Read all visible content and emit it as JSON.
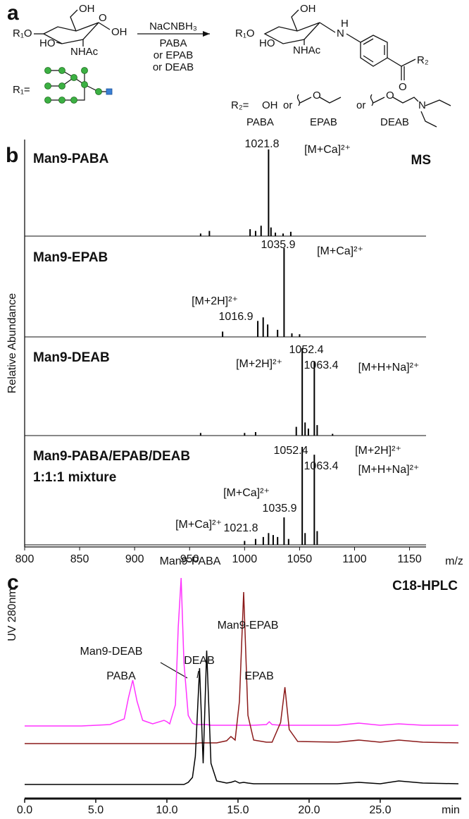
{
  "panel_labels": [
    "a",
    "b",
    "c"
  ],
  "scheme": {
    "reactant": {
      "r1o": "R₁O",
      "oh6": "OH",
      "ring_o": "O",
      "oh1": "OH",
      "ho": "HO",
      "nhac": "NHAc"
    },
    "r1": "R₁=",
    "reagents": [
      "NaCNBH₃",
      "PABA",
      "or EPAB",
      "or DEAB"
    ],
    "product": {
      "r1o": "R₁O",
      "oh": "OH",
      "ho": "HO",
      "nhac": "NHAc",
      "nh_h": "H",
      "nh_n": "N",
      "ketone_o": "O",
      "r2": "R₂"
    },
    "r2_def": {
      "label": "R₂=",
      "oh": "OH",
      "or": [
        "or",
        "or"
      ],
      "ether_o": [
        "O",
        "O"
      ],
      "amine_n": "N",
      "names": [
        "PABA",
        "EPAB",
        "DEAB"
      ]
    }
  },
  "chart_data": [
    {
      "type": "stem",
      "tag": "MS",
      "ylabel": "Relative Abundance",
      "xlabel": "m/z",
      "xlim": [
        800,
        1165
      ],
      "xticks": [
        800,
        850,
        900,
        950,
        1000,
        1050,
        1100,
        1150
      ],
      "ylim": [
        0,
        100
      ],
      "color": "#000000",
      "panels": [
        {
          "title": [
            "Man9-PABA"
          ],
          "x": [
            960,
            968,
            1005,
            1010,
            1015,
            1021.8,
            1024,
            1028,
            1035,
            1042
          ],
          "values": [
            3,
            6,
            8,
            6,
            12,
            100,
            10,
            4,
            3,
            5
          ],
          "annotations": [
            "1021.8",
            "[M+Ca]²⁺"
          ]
        },
        {
          "title": [
            "Man9-EPAB"
          ],
          "x": [
            980,
            1012,
            1016.9,
            1021,
            1030,
            1035.9,
            1043,
            1050
          ],
          "values": [
            6,
            18,
            22,
            14,
            8,
            100,
            4,
            3
          ],
          "annotations": [
            "1035.9",
            "[M+Ca]²⁺",
            "[M+2H]²⁺",
            "1016.9"
          ]
        },
        {
          "title": [
            "Man9-DEAB"
          ],
          "x": [
            960,
            1000,
            1010,
            1047,
            1052.4,
            1055,
            1058,
            1063.4,
            1066,
            1080
          ],
          "values": [
            3,
            3,
            4,
            10,
            100,
            15,
            8,
            85,
            12,
            2
          ],
          "annotations": [
            "1052.4",
            "[M+2H]²⁺",
            "1063.4",
            "[M+H+Na]²⁺"
          ]
        },
        {
          "title": [
            "Man9-PABA/EPAB/DEAB",
            "1:1:1 mixture"
          ],
          "x": [
            1000,
            1010,
            1017,
            1021.8,
            1026,
            1030,
            1035.9,
            1040,
            1052.4,
            1055,
            1063.4,
            1066
          ],
          "values": [
            4,
            6,
            8,
            12,
            10,
            8,
            28,
            6,
            100,
            12,
            92,
            14
          ],
          "annotations": [
            "1052.4",
            "[M+2H]²⁺",
            "1063.4",
            "[M+H+Na]²⁺",
            "[M+Ca]²⁺",
            "1035.9",
            "[M+Ca]²⁺",
            "1021.8"
          ]
        }
      ]
    },
    {
      "type": "line",
      "tag": "C18-HPLC",
      "ylabel": "UV 280nm",
      "xlabel": "min",
      "xlim": [
        0,
        30.5
      ],
      "xticks": [
        {
          "value": 0,
          "label": "0.0"
        },
        {
          "value": 5,
          "label": "5.0"
        },
        {
          "value": 10,
          "label": "10.0"
        },
        {
          "value": 15,
          "label": "15.0"
        },
        {
          "value": 20,
          "label": "20.0"
        },
        {
          "value": 25,
          "label": "25.0"
        }
      ],
      "ylim": [
        0,
        250
      ],
      "x": [
        0,
        2,
        4,
        6,
        7,
        7.3,
        7.6,
        7.9,
        8.3,
        9,
        9.8,
        10,
        10.2,
        10.6,
        10.8,
        11,
        11.2,
        11.5,
        11.8,
        12,
        12.3,
        12.55,
        12.8,
        13.1,
        13.5,
        14.2,
        14.5,
        14.8,
        15.1,
        15.4,
        15.7,
        16.1,
        17,
        17.2,
        17.4,
        18,
        18.3,
        18.6,
        19.2,
        22,
        23.5,
        25,
        26.3,
        28,
        30.5
      ],
      "series": [
        {
          "color": "#ff33ff",
          "values": [
            0,
            0,
            0,
            2,
            10,
            40,
            65,
            35,
            8,
            3,
            8,
            6,
            3,
            30,
            140,
            210,
            90,
            15,
            4,
            2,
            2,
            2,
            2,
            1,
            1,
            1,
            1,
            1,
            1,
            1,
            1,
            1,
            2,
            6,
            2,
            1,
            1,
            1,
            1,
            1,
            4,
            1,
            3,
            1,
            1
          ]
        },
        {
          "color": "#8b1a1a",
          "values": [
            0,
            0,
            0,
            0,
            0,
            0,
            0,
            0,
            0,
            0,
            0,
            0,
            0,
            0,
            0,
            0,
            0,
            0,
            0,
            0,
            1,
            1,
            1,
            1,
            1,
            4,
            10,
            5,
            60,
            215,
            40,
            5,
            2,
            2,
            2,
            30,
            80,
            20,
            3,
            2,
            5,
            2,
            5,
            2,
            1
          ]
        },
        {
          "color": "#000000",
          "values": [
            0,
            0,
            0,
            0,
            0,
            0,
            0,
            0,
            0,
            0,
            0,
            0,
            0,
            0,
            0,
            0,
            0,
            3,
            10,
            40,
            165,
            30,
            190,
            30,
            5,
            2,
            3,
            5,
            2,
            3,
            2,
            1,
            1,
            1,
            1,
            1,
            1,
            1,
            1,
            1,
            3,
            1,
            5,
            2,
            1
          ]
        }
      ],
      "annotations": [
        "Man9-PABA",
        "PABA",
        "Man9-DEAB",
        "DEAB",
        "Man9-EPAB",
        "EPAB"
      ]
    }
  ]
}
